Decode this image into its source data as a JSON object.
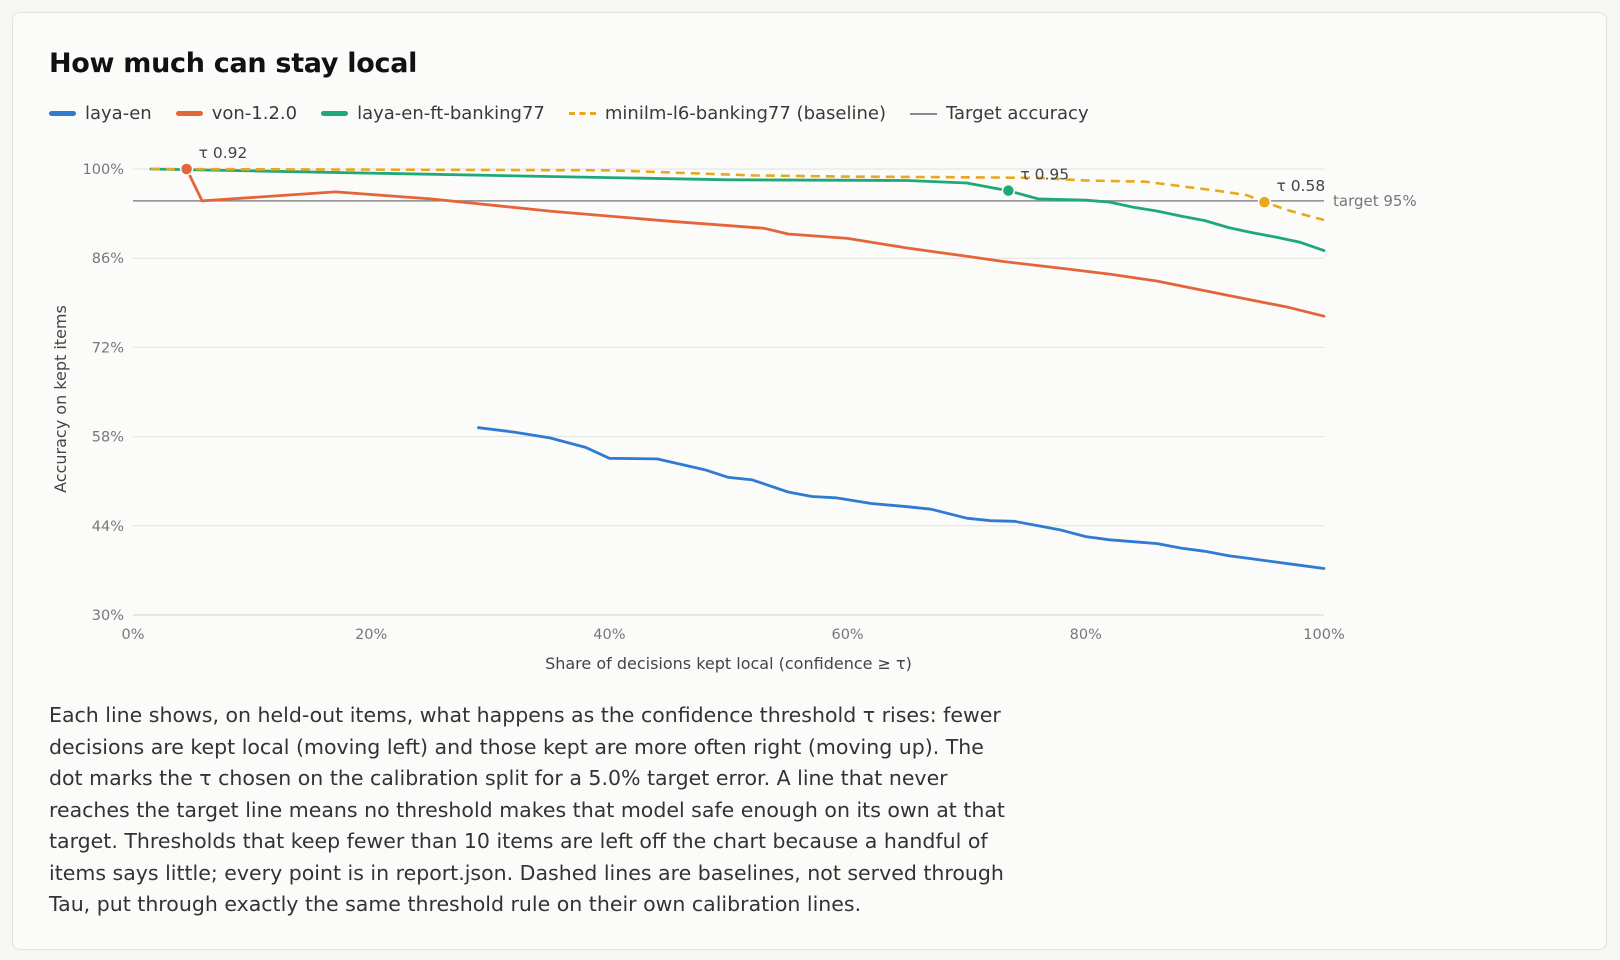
{
  "title": "How much can stay local",
  "legend": [
    {
      "label": "laya-en",
      "color": "#2f7bd3",
      "style": "solid"
    },
    {
      "label": "von-1.2.0",
      "color": "#e5653a",
      "style": "solid"
    },
    {
      "label": "laya-en-ft-banking77",
      "color": "#1fa87a",
      "style": "solid"
    },
    {
      "label": "minilm-l6-banking77 (baseline)",
      "color": "#e8a71c",
      "style": "dashed"
    },
    {
      "label": "Target accuracy",
      "color": "#8a8a8a",
      "style": "thin"
    }
  ],
  "caption": "Each line shows, on held-out items, what happens as the confidence threshold τ rises: fewer decisions are kept local (moving left) and those kept are more often right (moving up). The dot marks the τ chosen on the calibration split for a 5.0% target error. A line that never reaches the target line means no threshold makes that model safe enough on its own at that target. Thresholds that keep fewer than 10 items are left off the chart because a handful of items says little; every point is in report.json. Dashed lines are baselines, not served through Tau, put through exactly the same threshold rule on their own calibration lines.",
  "chart_data": {
    "type": "line",
    "xlabel": "Share of decisions kept local (confidence ≥ τ)",
    "ylabel": "Accuracy on kept items",
    "xlim": [
      0,
      100
    ],
    "ylim": [
      30,
      100
    ],
    "x_ticks": [
      0,
      20,
      40,
      60,
      80,
      100
    ],
    "x_tick_labels": [
      "0%",
      "20%",
      "40%",
      "60%",
      "80%",
      "100%"
    ],
    "y_ticks": [
      30,
      44,
      58,
      72,
      86,
      100
    ],
    "y_tick_labels": [
      "30%",
      "44%",
      "58%",
      "72%",
      "86%",
      "100%"
    ],
    "grid": "horizontal",
    "target": {
      "value": 95,
      "label": "target 95%"
    },
    "series": [
      {
        "name": "laya-en",
        "color": "#2f7bd3",
        "dash": false,
        "x": [
          29,
          32,
          35,
          38,
          40,
          44,
          48,
          50,
          52,
          55,
          57,
          59,
          62,
          65,
          67,
          70,
          72,
          74,
          76,
          78,
          80,
          82,
          84,
          86,
          88,
          90,
          92,
          94,
          96,
          98,
          100
        ],
        "y": [
          59.4,
          58.7,
          57.8,
          56.3,
          54.6,
          54.5,
          52.8,
          51.6,
          51.2,
          49.3,
          48.6,
          48.4,
          47.5,
          47.0,
          46.6,
          45.2,
          44.8,
          44.7,
          44.0,
          43.3,
          42.3,
          41.8,
          41.5,
          41.2,
          40.5,
          40.0,
          39.3,
          38.8,
          38.3,
          37.8,
          37.3
        ]
      },
      {
        "name": "von-1.2.0",
        "color": "#e5653a",
        "dash": false,
        "x": [
          4.5,
          5.8,
          17,
          25,
          35,
          45,
          53,
          55,
          60,
          65,
          70,
          73,
          78,
          82,
          86,
          90,
          94,
          97,
          100
        ],
        "y": [
          100,
          95,
          96.4,
          95.3,
          93.4,
          91.8,
          90.7,
          89.8,
          89.1,
          87.6,
          86.3,
          85.5,
          84.4,
          83.5,
          82.4,
          80.9,
          79.4,
          78.3,
          76.9
        ]
      },
      {
        "name": "laya-en-ft-banking77",
        "color": "#1fa87a",
        "dash": false,
        "x": [
          1.5,
          10,
          30,
          50,
          65,
          70,
          73.5,
          76,
          80,
          82,
          84,
          86,
          88,
          90,
          92,
          94,
          96,
          98,
          100
        ],
        "y": [
          100,
          99.7,
          99.0,
          98.3,
          98.2,
          97.8,
          96.6,
          95.3,
          95.1,
          94.8,
          94.0,
          93.4,
          92.6,
          91.9,
          90.8,
          90.0,
          89.3,
          88.5,
          87.2
        ]
      },
      {
        "name": "minilm-l6-banking77 (baseline)",
        "color": "#e8a71c",
        "dash": true,
        "x": [
          1.5,
          20,
          40,
          52,
          60,
          70,
          76,
          80,
          85,
          88,
          91,
          93.5,
          95,
          97,
          100
        ],
        "y": [
          100,
          99.9,
          99.8,
          99.0,
          98.8,
          98.7,
          98.6,
          98.2,
          98.0,
          97.3,
          96.6,
          95.9,
          94.8,
          93.5,
          92.0
        ]
      }
    ],
    "markers": [
      {
        "series": "von-1.2.0",
        "x": 4.5,
        "y": 100,
        "label": "τ 0.92",
        "color": "#e5653a"
      },
      {
        "series": "laya-en-ft-banking77",
        "x": 73.5,
        "y": 96.6,
        "label": "τ 0.95",
        "color": "#1fa87a"
      },
      {
        "series": "minilm-l6-banking77 (baseline)",
        "x": 95,
        "y": 94.8,
        "label": "τ 0.58",
        "color": "#e8a71c"
      }
    ]
  }
}
